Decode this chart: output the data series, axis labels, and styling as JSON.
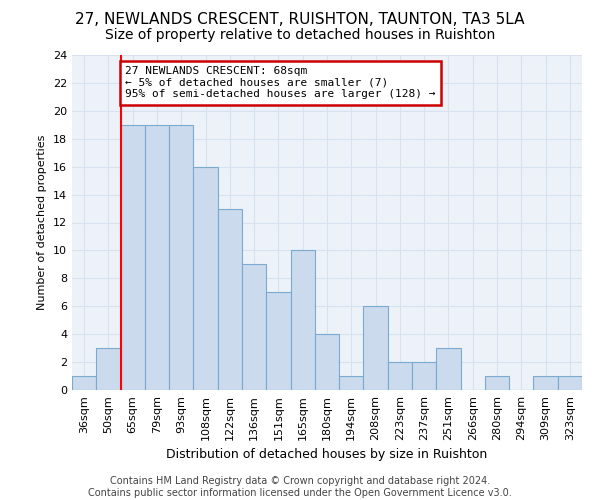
{
  "title": "27, NEWLANDS CRESCENT, RUISHTON, TAUNTON, TA3 5LA",
  "subtitle": "Size of property relative to detached houses in Ruishton",
  "xlabel": "Distribution of detached houses by size in Ruishton",
  "ylabel": "Number of detached properties",
  "categories": [
    "36sqm",
    "50sqm",
    "65sqm",
    "79sqm",
    "93sqm",
    "108sqm",
    "122sqm",
    "136sqm",
    "151sqm",
    "165sqm",
    "180sqm",
    "194sqm",
    "208sqm",
    "223sqm",
    "237sqm",
    "251sqm",
    "266sqm",
    "280sqm",
    "294sqm",
    "309sqm",
    "323sqm"
  ],
  "values": [
    1,
    3,
    19,
    19,
    19,
    16,
    13,
    9,
    7,
    10,
    4,
    1,
    6,
    2,
    2,
    3,
    0,
    1,
    0,
    1,
    1
  ],
  "bar_color": "#ccdaed",
  "bar_edge_color": "#7aaad0",
  "grid_color": "#d8e2ef",
  "background_color": "#ffffff",
  "ax_background": "#edf2f9",
  "red_line_x": 2.0,
  "annotation_text": "27 NEWLANDS CRESCENT: 68sqm\n← 5% of detached houses are smaller (7)\n95% of semi-detached houses are larger (128) →",
  "annotation_box_color": "#ffffff",
  "annotation_box_edge_color": "#cc0000",
  "footer": "Contains HM Land Registry data © Crown copyright and database right 2024.\nContains public sector information licensed under the Open Government Licence v3.0.",
  "ylim": [
    0,
    24
  ],
  "yticks": [
    0,
    2,
    4,
    6,
    8,
    10,
    12,
    14,
    16,
    18,
    20,
    22,
    24
  ],
  "title_fontsize": 11,
  "subtitle_fontsize": 10,
  "xlabel_fontsize": 9,
  "ylabel_fontsize": 8,
  "tick_fontsize": 8,
  "annotation_fontsize": 8,
  "footer_fontsize": 7
}
